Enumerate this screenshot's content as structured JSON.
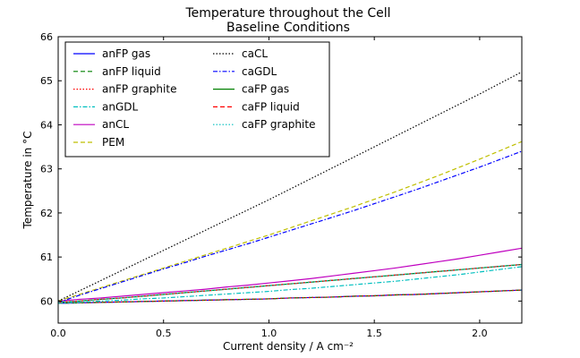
{
  "chart_data": {
    "type": "line",
    "title": "Temperature throughout the Cell",
    "subtitle": "Baseline Conditions",
    "xlabel": "Current density / A cm⁻²",
    "ylabel": "Temperature in  °C",
    "xlim": [
      0.0,
      2.2
    ],
    "ylim": [
      59.5,
      66.0
    ],
    "xticks": [
      "0.0",
      "0.5",
      "1.0",
      "1.5",
      "2.0"
    ],
    "yticks": [
      "60",
      "61",
      "62",
      "63",
      "64",
      "65",
      "66"
    ],
    "grid": false,
    "legend_position": "top-left",
    "x": [
      0.0,
      0.1,
      0.2,
      0.3,
      0.4,
      0.5,
      0.6,
      0.7,
      0.8,
      0.9,
      1.0,
      1.1,
      1.2,
      1.3,
      1.4,
      1.5,
      1.6,
      1.7,
      1.8,
      1.9,
      2.0,
      2.1,
      2.2
    ],
    "series": [
      {
        "name": "anFP gas",
        "color": "#0000ff",
        "dash": "solid",
        "values": [
          59.95,
          59.96,
          59.97,
          59.98,
          59.99,
          60.0,
          60.01,
          60.02,
          60.03,
          60.04,
          60.05,
          60.07,
          60.08,
          60.09,
          60.11,
          60.12,
          60.14,
          60.15,
          60.17,
          60.19,
          60.21,
          60.23,
          60.25
        ]
      },
      {
        "name": "anFP liquid",
        "color": "#008000",
        "dash": "dashed",
        "values": [
          59.95,
          59.96,
          59.97,
          59.98,
          59.99,
          60.0,
          60.01,
          60.02,
          60.03,
          60.04,
          60.05,
          60.07,
          60.08,
          60.09,
          60.11,
          60.12,
          60.14,
          60.15,
          60.17,
          60.19,
          60.21,
          60.23,
          60.25
        ]
      },
      {
        "name": "anFP graphite",
        "color": "#ff0000",
        "dash": "dotted",
        "values": [
          59.95,
          59.96,
          59.97,
          59.98,
          59.99,
          60.0,
          60.01,
          60.02,
          60.03,
          60.04,
          60.05,
          60.07,
          60.08,
          60.09,
          60.11,
          60.12,
          60.14,
          60.15,
          60.17,
          60.19,
          60.21,
          60.23,
          60.25
        ]
      },
      {
        "name": "anGDL",
        "color": "#00bfbf",
        "dash": "dashdot",
        "values": [
          59.95,
          59.97,
          60.0,
          60.02,
          60.05,
          60.07,
          60.1,
          60.13,
          60.16,
          60.19,
          60.22,
          60.26,
          60.29,
          60.33,
          60.37,
          60.41,
          60.45,
          60.5,
          60.55,
          60.6,
          60.66,
          60.72,
          60.78
        ]
      },
      {
        "name": "anCL",
        "color": "#bf00bf",
        "dash": "solid",
        "values": [
          60.0,
          60.04,
          60.07,
          60.11,
          60.15,
          60.19,
          60.23,
          60.27,
          60.32,
          60.36,
          60.41,
          60.46,
          60.51,
          60.57,
          60.63,
          60.69,
          60.75,
          60.82,
          60.89,
          60.96,
          61.04,
          61.12,
          61.2
        ]
      },
      {
        "name": "PEM",
        "color": "#bfbf00",
        "dash": "dashed",
        "values": [
          60.0,
          60.15,
          60.3,
          60.45,
          60.6,
          60.75,
          60.9,
          61.05,
          61.2,
          61.35,
          61.5,
          61.66,
          61.82,
          61.98,
          62.14,
          62.31,
          62.48,
          62.66,
          62.84,
          63.03,
          63.22,
          63.42,
          63.62
        ]
      },
      {
        "name": "caCL",
        "color": "#000000",
        "dash": "dotted",
        "values": [
          60.0,
          60.23,
          60.46,
          60.69,
          60.92,
          61.15,
          61.38,
          61.61,
          61.84,
          62.07,
          62.3,
          62.54,
          62.78,
          63.02,
          63.26,
          63.5,
          63.74,
          63.98,
          64.22,
          64.46,
          64.7,
          64.95,
          65.2
        ]
      },
      {
        "name": "caGDL",
        "color": "#0000ff",
        "dash": "dashdot",
        "values": [
          59.97,
          60.13,
          60.28,
          60.43,
          60.58,
          60.73,
          60.87,
          61.02,
          61.16,
          61.3,
          61.45,
          61.6,
          61.75,
          61.9,
          62.05,
          62.21,
          62.37,
          62.53,
          62.7,
          62.87,
          63.04,
          63.22,
          63.4
        ]
      },
      {
        "name": "caFP gas",
        "color": "#008000",
        "dash": "solid",
        "values": [
          59.97,
          60.0,
          60.04,
          60.07,
          60.11,
          60.15,
          60.19,
          60.23,
          60.27,
          60.31,
          60.35,
          60.39,
          60.43,
          60.47,
          60.51,
          60.55,
          60.59,
          60.63,
          60.67,
          60.71,
          60.75,
          60.79,
          60.83
        ]
      },
      {
        "name": "caFP liquid",
        "color": "#ff0000",
        "dash": "dashed",
        "values": [
          59.97,
          60.0,
          60.04,
          60.07,
          60.11,
          60.15,
          60.19,
          60.23,
          60.27,
          60.31,
          60.35,
          60.39,
          60.43,
          60.47,
          60.51,
          60.55,
          60.59,
          60.63,
          60.67,
          60.71,
          60.75,
          60.79,
          60.83
        ]
      },
      {
        "name": "caFP graphite",
        "color": "#00bfbf",
        "dash": "dotted",
        "values": [
          59.97,
          60.0,
          60.04,
          60.07,
          60.11,
          60.15,
          60.19,
          60.23,
          60.27,
          60.31,
          60.35,
          60.39,
          60.43,
          60.47,
          60.51,
          60.55,
          60.59,
          60.63,
          60.67,
          60.71,
          60.75,
          60.79,
          60.83
        ]
      }
    ]
  }
}
